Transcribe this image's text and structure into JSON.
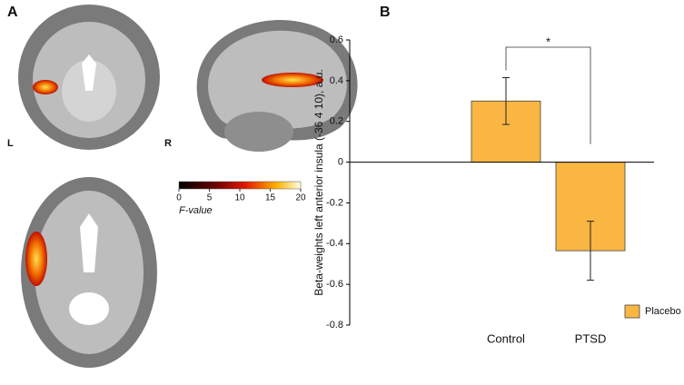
{
  "panel_labels": [
    "A",
    "B"
  ],
  "hemisphere_labels": [
    "L",
    "R"
  ],
  "colorbar": {
    "label": "F-value",
    "lim": [
      0,
      20
    ],
    "ticks": [
      0,
      5,
      10,
      15,
      20
    ]
  },
  "chart_data": {
    "type": "bar",
    "categories": [
      "Control",
      "PTSD"
    ],
    "series": [
      {
        "name": "Placebo",
        "color": "#f9b642",
        "values": [
          0.3,
          -0.435
        ],
        "errors": [
          0.115,
          0.145
        ]
      }
    ],
    "y_label": "Beta-weights left anterior insula (-36 4 10), a.u.",
    "ylim": [
      -0.8,
      0.6
    ],
    "yticks": [
      -0.8,
      -0.6,
      -0.4,
      -0.2,
      0,
      0.2,
      0.4,
      0.6
    ],
    "annotation": "*",
    "legend": "lower right"
  }
}
